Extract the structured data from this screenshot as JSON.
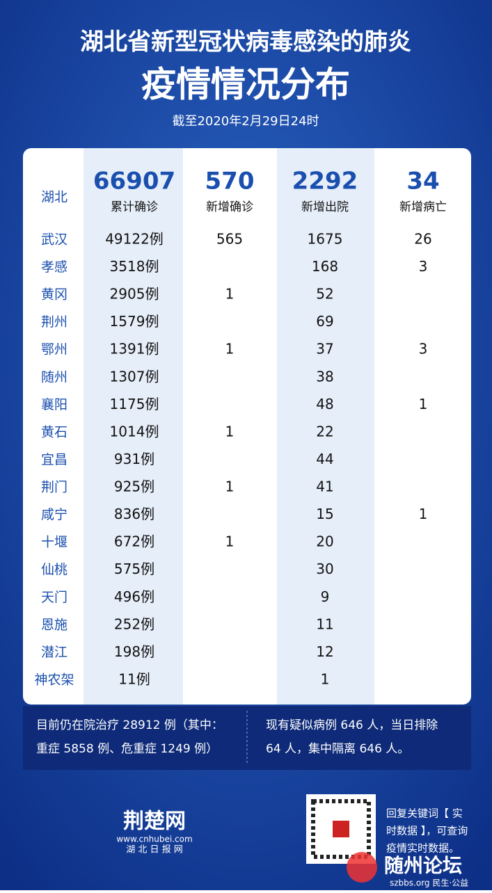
{
  "header": {
    "title_lines": [
      "湖北省新型冠状病毒感染的肺炎",
      "疫情情况分布"
    ],
    "date": "截至2020年2月29日24时"
  },
  "table": {
    "summary": {
      "label": "湖北",
      "cells": [
        {
          "value": 66907,
          "label": "累计确诊"
        },
        {
          "value": 570,
          "label": "新增确诊"
        },
        {
          "value": 2292,
          "label": "新增出院"
        },
        {
          "value": 34,
          "label": "新增病亡"
        }
      ]
    },
    "rows": [
      [
        "武汉",
        "49122例",
        565,
        1675,
        26
      ],
      [
        "孝感",
        "3518例",
        null,
        168,
        3
      ],
      [
        "黄冈",
        "2905例",
        1,
        52,
        null
      ],
      [
        "荆州",
        "1579例",
        null,
        69,
        null
      ],
      [
        "鄂州",
        "1391例",
        1,
        37,
        3
      ],
      [
        "随州",
        "1307例",
        null,
        38,
        null
      ],
      [
        "襄阳",
        "1175例",
        null,
        48,
        1
      ],
      [
        "黄石",
        "1014例",
        1,
        22,
        null
      ],
      [
        "宜昌",
        "931例",
        null,
        44,
        null
      ],
      [
        "荆门",
        "925例",
        1,
        41,
        null
      ],
      [
        "咸宁",
        "836例",
        null,
        15,
        1
      ],
      [
        "十堰",
        "672例",
        1,
        20,
        null
      ],
      [
        "仙桃",
        "575例",
        null,
        30,
        null
      ],
      [
        "天门",
        "496例",
        null,
        9,
        null
      ],
      [
        "恩施",
        "252例",
        null,
        11,
        null
      ],
      [
        "潜江",
        "198例",
        null,
        12,
        null
      ],
      [
        "神农架",
        "11例",
        null,
        1,
        null
      ]
    ]
  },
  "notes": {
    "left": [
      "目前仍在院治疗 28912 例（其中：",
      "重症 5858 例、危重症 1249 例）"
    ],
    "right": [
      "现有疑似病例 646 人，当日排除",
      "64 人，集中隔离 646 人。"
    ]
  },
  "footer": {
    "logo": "荆楚网",
    "site": "www.cnhubei.com",
    "brand": "湖 北 日 报 网",
    "qr_text": [
      "回复关键词【 实",
      "时数据 】，可查询",
      "疫情实时数据。"
    ],
    "watermark": "随州论坛",
    "watermark_sub": "szbbs.org 民生·公益"
  }
}
